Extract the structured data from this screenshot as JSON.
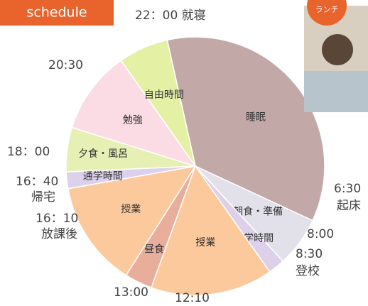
{
  "chart_data": {
    "type": "pie",
    "title": "schedule",
    "categories": [
      "睡眠",
      "朝食・準備",
      "通学時間",
      "授業",
      "昼食",
      "授業",
      "通学時間",
      "夕食・風呂",
      "勉強",
      "自由時間"
    ],
    "values": [
      8.5,
      1.5,
      0.5,
      3.67,
      0.83,
      3.17,
      0.5,
      1.33,
      2.5,
      1.5
    ],
    "colors": [
      "#c2a8a6",
      "#e2e1ea",
      "#dcd0ea",
      "#fbc99c",
      "#e9ad9c",
      "#fbc99c",
      "#dcd0ea",
      "#e6f0b4",
      "#fbdbe4",
      "#e4f0a4"
    ],
    "annotations": [
      "22：00 就寝",
      "20:30",
      "18：00",
      "16：40",
      "帰宅",
      "16：10",
      "放課後",
      "13:00",
      "12:10",
      "8:30",
      "登校",
      "8:00",
      "6:30",
      "起床"
    ],
    "photo_badge": "ランチ"
  }
}
